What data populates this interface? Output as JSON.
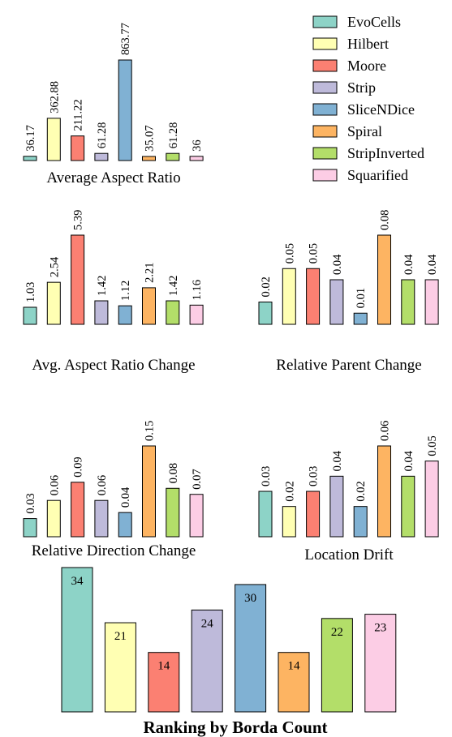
{
  "series_colors": {
    "EvoCells": "#8dd3c7",
    "Hilbert": "#ffffb3",
    "Moore": "#fb8072",
    "Strip": "#bebada",
    "SliceNDice": "#80b1d3",
    "Spiral": "#fdb462",
    "StripInverted": "#b3de69",
    "Squarified": "#fccde5"
  },
  "legend": [
    "EvoCells",
    "Hilbert",
    "Moore",
    "Strip",
    "SliceNDice",
    "Spiral",
    "StripInverted",
    "Squarified"
  ],
  "chart_data": [
    {
      "type": "bar",
      "title": "Average Aspect Ratio",
      "categories": [
        "EvoCells",
        "Hilbert",
        "Moore",
        "Strip",
        "SliceNDice",
        "Spiral",
        "StripInverted",
        "Squarified"
      ],
      "values": [
        36.17,
        362.88,
        211.22,
        61.28,
        863.77,
        35.07,
        61.28,
        36
      ],
      "labels": [
        "36.17",
        "362.88",
        "211.22",
        "61.28",
        "863.77",
        "35.07",
        "61.28",
        "36"
      ],
      "legend_position": "right"
    },
    {
      "type": "bar",
      "title": "Avg. Aspect Ratio Change",
      "categories": [
        "EvoCells",
        "Hilbert",
        "Moore",
        "Strip",
        "SliceNDice",
        "Spiral",
        "StripInverted",
        "Squarified"
      ],
      "values": [
        1.03,
        2.54,
        5.39,
        1.42,
        1.12,
        2.21,
        1.42,
        1.16
      ],
      "labels": [
        "1.03",
        "2.54",
        "5.39",
        "1.42",
        "1.12",
        "2.21",
        "1.42",
        "1.16"
      ]
    },
    {
      "type": "bar",
      "title": "Relative Parent Change",
      "categories": [
        "EvoCells",
        "Hilbert",
        "Moore",
        "Strip",
        "SliceNDice",
        "Spiral",
        "StripInverted",
        "Squarified"
      ],
      "values": [
        0.02,
        0.05,
        0.05,
        0.04,
        0.01,
        0.08,
        0.04,
        0.04
      ],
      "labels": [
        "0.02",
        "0.05",
        "0.05",
        "0.04",
        "0.01",
        "0.08",
        "0.04",
        "0.04"
      ]
    },
    {
      "type": "bar",
      "title": "Relative Direction Change",
      "categories": [
        "EvoCells",
        "Hilbert",
        "Moore",
        "Strip",
        "SliceNDice",
        "Spiral",
        "StripInverted",
        "Squarified"
      ],
      "values": [
        0.03,
        0.06,
        0.09,
        0.06,
        0.04,
        0.15,
        0.08,
        0.07
      ],
      "labels": [
        "0.03",
        "0.06",
        "0.09",
        "0.06",
        "0.04",
        "0.15",
        "0.08",
        "0.07"
      ]
    },
    {
      "type": "bar",
      "title": "Location Drift",
      "categories": [
        "EvoCells",
        "Hilbert",
        "Moore",
        "Strip",
        "SliceNDice",
        "Spiral",
        "StripInverted",
        "Squarified"
      ],
      "values": [
        0.03,
        0.02,
        0.03,
        0.04,
        0.02,
        0.06,
        0.04,
        0.05
      ],
      "labels": [
        "0.03",
        "0.02",
        "0.03",
        "0.04",
        "0.02",
        "0.06",
        "0.04",
        "0.05"
      ]
    },
    {
      "type": "bar",
      "title": "Ranking by Borda Count",
      "categories": [
        "EvoCells",
        "Hilbert",
        "Moore",
        "Strip",
        "SliceNDice",
        "Spiral",
        "StripInverted",
        "Squarified"
      ],
      "values": [
        34,
        21,
        14,
        24,
        30,
        14,
        22,
        23
      ],
      "labels": [
        "34",
        "21",
        "14",
        "24",
        "30",
        "14",
        "22",
        "23"
      ]
    }
  ]
}
